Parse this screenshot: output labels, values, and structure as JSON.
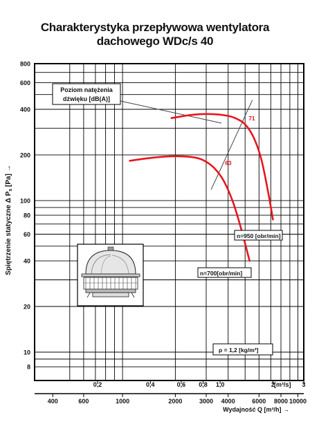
{
  "chart_data": {
    "type": "line",
    "title_line1": "Charakterystyka przepływowa wentylatora",
    "title_line2": "dachowego WDc/s 40",
    "ylabel": "Spiętrzenie statyczne Δ P",
    "ylabel_sub": "s",
    "ylabel_unit": " [Pa] →",
    "yscale": "log",
    "ylim": [
      6.5,
      800
    ],
    "yticks": [
      "800",
      "600",
      "400",
      "200",
      "100",
      "80",
      "60",
      "40",
      "20",
      "10",
      "8"
    ],
    "x_m3s_label": "[m³/s]",
    "x_m3s_ticks": [
      "0,2",
      "0,4",
      "0,6",
      "0,8",
      "1,0",
      "2",
      "3"
    ],
    "x_m3h_ticks": [
      "400",
      "600",
      "1000",
      "2000",
      "3000",
      "4000",
      "6000",
      "8000",
      "10000"
    ],
    "xlabel": "Wydajność Q [m³/h] →",
    "xscale": "log",
    "xlim_m3h": [
      315,
      10800
    ],
    "grid": true,
    "series": [
      {
        "name": "n=950 [obr/min]",
        "color": "#e8151c",
        "x": [
          1900,
          2500,
          3200,
          4000,
          4500,
          5000,
          5600,
          6200,
          6800,
          7200
        ],
        "y": [
          350,
          368,
          372,
          362,
          345,
          318,
          260,
          185,
          110,
          75
        ]
      },
      {
        "name": "n=700[obr/min]",
        "color": "#e8151c",
        "x": [
          1100,
          1500,
          2000,
          2600,
          3000,
          3400,
          3800,
          4300,
          4800,
          5300
        ],
        "y": [
          183,
          192,
          196,
          192,
          180,
          160,
          133,
          95,
          62,
          40
        ]
      }
    ],
    "noise_line": {
      "x": [
        3200,
        5500
      ],
      "y": [
        118,
        460
      ]
    },
    "noise_levels": [
      {
        "label": "71",
        "x": 5230,
        "y": 338
      },
      {
        "label": "63",
        "x": 3840,
        "y": 172
      }
    ],
    "noise_box_line1": "Poziom natężenia",
    "noise_box_line2": "dźwięku [dB(A)]",
    "density_label": "ρ = 1,2 [kg/m³]"
  }
}
